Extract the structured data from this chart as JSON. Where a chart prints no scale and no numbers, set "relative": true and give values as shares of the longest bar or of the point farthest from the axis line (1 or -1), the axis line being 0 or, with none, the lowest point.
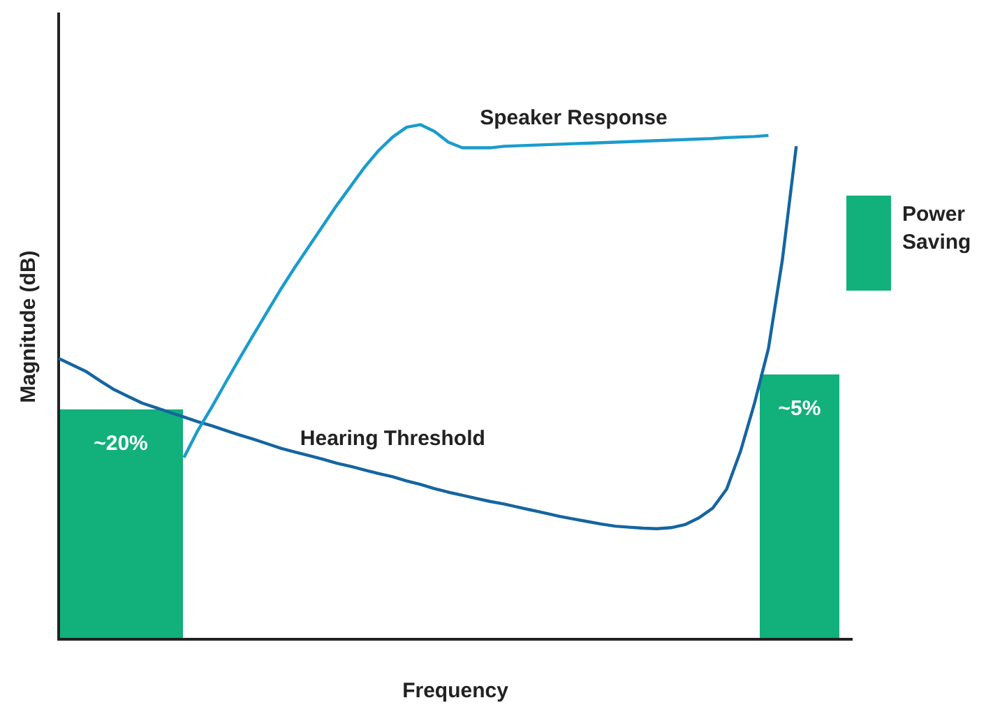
{
  "chart_data": {
    "type": "line",
    "relative": true,
    "xlabel": "Frequency",
    "ylabel": "Magnitude (dB)",
    "marker": "none",
    "annotations": [
      "~20%",
      "~5%",
      "Power Saving"
    ],
    "categories": [
      null,
      null,
      null,
      null,
      null,
      null,
      null,
      null,
      null,
      null,
      null,
      null,
      null,
      null,
      null,
      null,
      null,
      null,
      null,
      null,
      null,
      null,
      null,
      null,
      null,
      null,
      null,
      null,
      null,
      null,
      null,
      null,
      null,
      null,
      null,
      null,
      null,
      null,
      null,
      null,
      null,
      null,
      null,
      null,
      null,
      null,
      null,
      null,
      null,
      null,
      null,
      null,
      null,
      null,
      null,
      null,
      null,
      null
    ],
    "series": [
      {
        "name": "Speaker Response",
        "color": "#1a9ccc",
        "values": [
          null,
          null,
          null,
          null,
          null,
          null,
          null,
          null,
          null,
          0.353,
          0.406,
          0.451,
          0.499,
          0.546,
          0.592,
          0.637,
          0.682,
          0.724,
          0.764,
          0.804,
          0.844,
          0.881,
          0.918,
          0.95,
          0.976,
          0.995,
          1.0,
          0.987,
          0.966,
          0.955,
          0.955,
          0.955,
          0.958,
          0.959,
          0.96,
          0.961,
          0.962,
          0.963,
          0.964,
          0.965,
          0.966,
          0.967,
          0.968,
          0.969,
          0.97,
          0.971,
          0.972,
          0.973,
          0.975,
          0.976,
          0.977,
          0.979,
          null,
          null,
          null,
          null,
          null,
          null
        ]
      },
      {
        "name": "Hearing Threshold",
        "color": "#1565a0",
        "values": [
          0.546,
          0.533,
          0.52,
          0.502,
          0.485,
          0.472,
          0.459,
          0.45,
          0.441,
          0.432,
          0.423,
          0.415,
          0.406,
          0.397,
          0.389,
          0.38,
          0.371,
          0.364,
          0.357,
          0.35,
          0.342,
          0.336,
          0.329,
          0.322,
          0.316,
          0.308,
          0.301,
          0.293,
          0.286,
          0.28,
          0.274,
          0.268,
          0.263,
          0.257,
          0.251,
          0.245,
          0.239,
          0.234,
          0.229,
          0.224,
          0.22,
          0.218,
          0.216,
          0.215,
          0.217,
          0.223,
          0.236,
          0.255,
          0.292,
          0.366,
          0.459,
          0.565,
          0.737,
          0.958,
          null,
          null,
          null,
          null
        ]
      }
    ]
  }
}
